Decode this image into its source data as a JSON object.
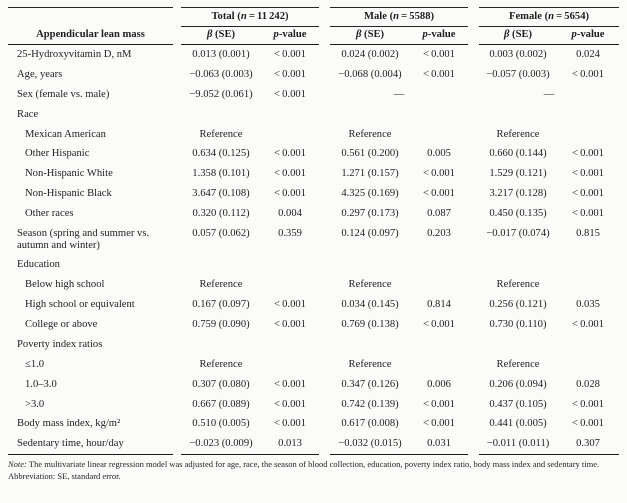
{
  "table": {
    "row_header": "Appendicular lean mass",
    "groups": [
      {
        "name": "Total",
        "n": "(n = 11 242)"
      },
      {
        "name": "Male",
        "n": "(n = 5588)"
      },
      {
        "name": "Female",
        "n": "(n = 5654)"
      }
    ],
    "subcolumns": [
      "β (SE)",
      "p-value"
    ],
    "rows": [
      {
        "type": "data",
        "indent": 0,
        "label": "25-Hydroxyvitamin D, nM",
        "cells": [
          "0.013 (0.001)",
          "< 0.001",
          "0.024 (0.002)",
          "< 0.001",
          "0.003 (0.002)",
          "0.024"
        ]
      },
      {
        "type": "data",
        "indent": 0,
        "label": "Age, years",
        "cells": [
          "−0.063 (0.003)",
          "< 0.001",
          "−0.068 (0.004)",
          "< 0.001",
          "−0.057 (0.003)",
          "< 0.001"
        ]
      },
      {
        "type": "dash",
        "indent": 0,
        "label": "Sex (female vs. male)",
        "cells": [
          "−9.052 (0.061)",
          "< 0.001",
          "—",
          "—"
        ]
      },
      {
        "type": "section",
        "indent": 0,
        "label": "Race",
        "cells": []
      },
      {
        "type": "data",
        "indent": 1,
        "label": "Mexican American",
        "cells": [
          "Reference",
          "",
          "Reference",
          "",
          "Reference",
          ""
        ]
      },
      {
        "type": "data",
        "indent": 1,
        "label": "Other Hispanic",
        "cells": [
          "0.634 (0.125)",
          "< 0.001",
          "0.561 (0.200)",
          "0.005",
          "0.660 (0.144)",
          "< 0.001"
        ]
      },
      {
        "type": "data",
        "indent": 1,
        "label": "Non-Hispanic White",
        "cells": [
          "1.358 (0.101)",
          "< 0.001",
          "1.271 (0.157)",
          "< 0.001",
          "1.529 (0.121)",
          "< 0.001"
        ]
      },
      {
        "type": "data",
        "indent": 1,
        "label": "Non-Hispanic Black",
        "cells": [
          "3.647 (0.108)",
          "< 0.001",
          "4.325 (0.169)",
          "< 0.001",
          "3.217 (0.128)",
          "< 0.001"
        ]
      },
      {
        "type": "data",
        "indent": 1,
        "label": "Other races",
        "cells": [
          "0.320 (0.112)",
          "0.004",
          "0.297 (0.173)",
          "0.087",
          "0.450 (0.135)",
          "< 0.001"
        ]
      },
      {
        "type": "data",
        "indent": 0,
        "label": "Season (spring and summer vs. autumn and winter)",
        "cells": [
          "0.057 (0.062)",
          "0.359",
          "0.124 (0.097)",
          "0.203",
          "−0.017 (0.074)",
          "0.815"
        ]
      },
      {
        "type": "section",
        "indent": 0,
        "label": "Education",
        "cells": []
      },
      {
        "type": "data",
        "indent": 1,
        "label": "Below high school",
        "cells": [
          "Reference",
          "",
          "Reference",
          "",
          "Reference",
          ""
        ]
      },
      {
        "type": "data",
        "indent": 1,
        "label": "High school or equivalent",
        "cells": [
          "0.167 (0.097)",
          "< 0.001",
          "0.034 (0.145)",
          "0.814",
          "0.256 (0.121)",
          "0.035"
        ]
      },
      {
        "type": "data",
        "indent": 1,
        "label": "College or above",
        "cells": [
          "0.759 (0.090)",
          "< 0.001",
          "0.769 (0.138)",
          "< 0.001",
          "0.730 (0.110)",
          "< 0.001"
        ]
      },
      {
        "type": "section",
        "indent": 0,
        "label": "Poverty index ratios",
        "cells": []
      },
      {
        "type": "data",
        "indent": 1,
        "label": "≤1.0",
        "cells": [
          "Reference",
          "",
          "Reference",
          "",
          "Reference",
          ""
        ]
      },
      {
        "type": "data",
        "indent": 1,
        "label": "1.0–3.0",
        "cells": [
          "0.307 (0.080)",
          "< 0.001",
          "0.347 (0.126)",
          "0.006",
          "0.206 (0.094)",
          "0.028"
        ]
      },
      {
        "type": "data",
        "indent": 1,
        "label": ">3.0",
        "cells": [
          "0.667 (0.089)",
          "< 0.001",
          "0.742 (0.139)",
          "< 0.001",
          "0.437 (0.105)",
          "< 0.001"
        ]
      },
      {
        "type": "data",
        "indent": 0,
        "label": "Body mass index, kg/m²",
        "cells": [
          "0.510 (0.005)",
          "< 0.001",
          "0.617 (0.008)",
          "< 0.001",
          "0.441 (0.005)",
          "< 0.001"
        ]
      },
      {
        "type": "data",
        "indent": 0,
        "label": "Sedentary time, hour/day",
        "cells": [
          "−0.023 (0.009)",
          "0.013",
          "−0.032 (0.015)",
          "0.031",
          "−0.011 (0.011)",
          "0.307"
        ]
      }
    ]
  },
  "footnotes": {
    "note_label": "Note:",
    "note_body": "The multivariate linear regression model was adjusted for age, race, the season of blood collection, education, poverty index ratio, body mass index and sedentary time.",
    "abbreviation": "Abbreviation: SE, standard error."
  }
}
